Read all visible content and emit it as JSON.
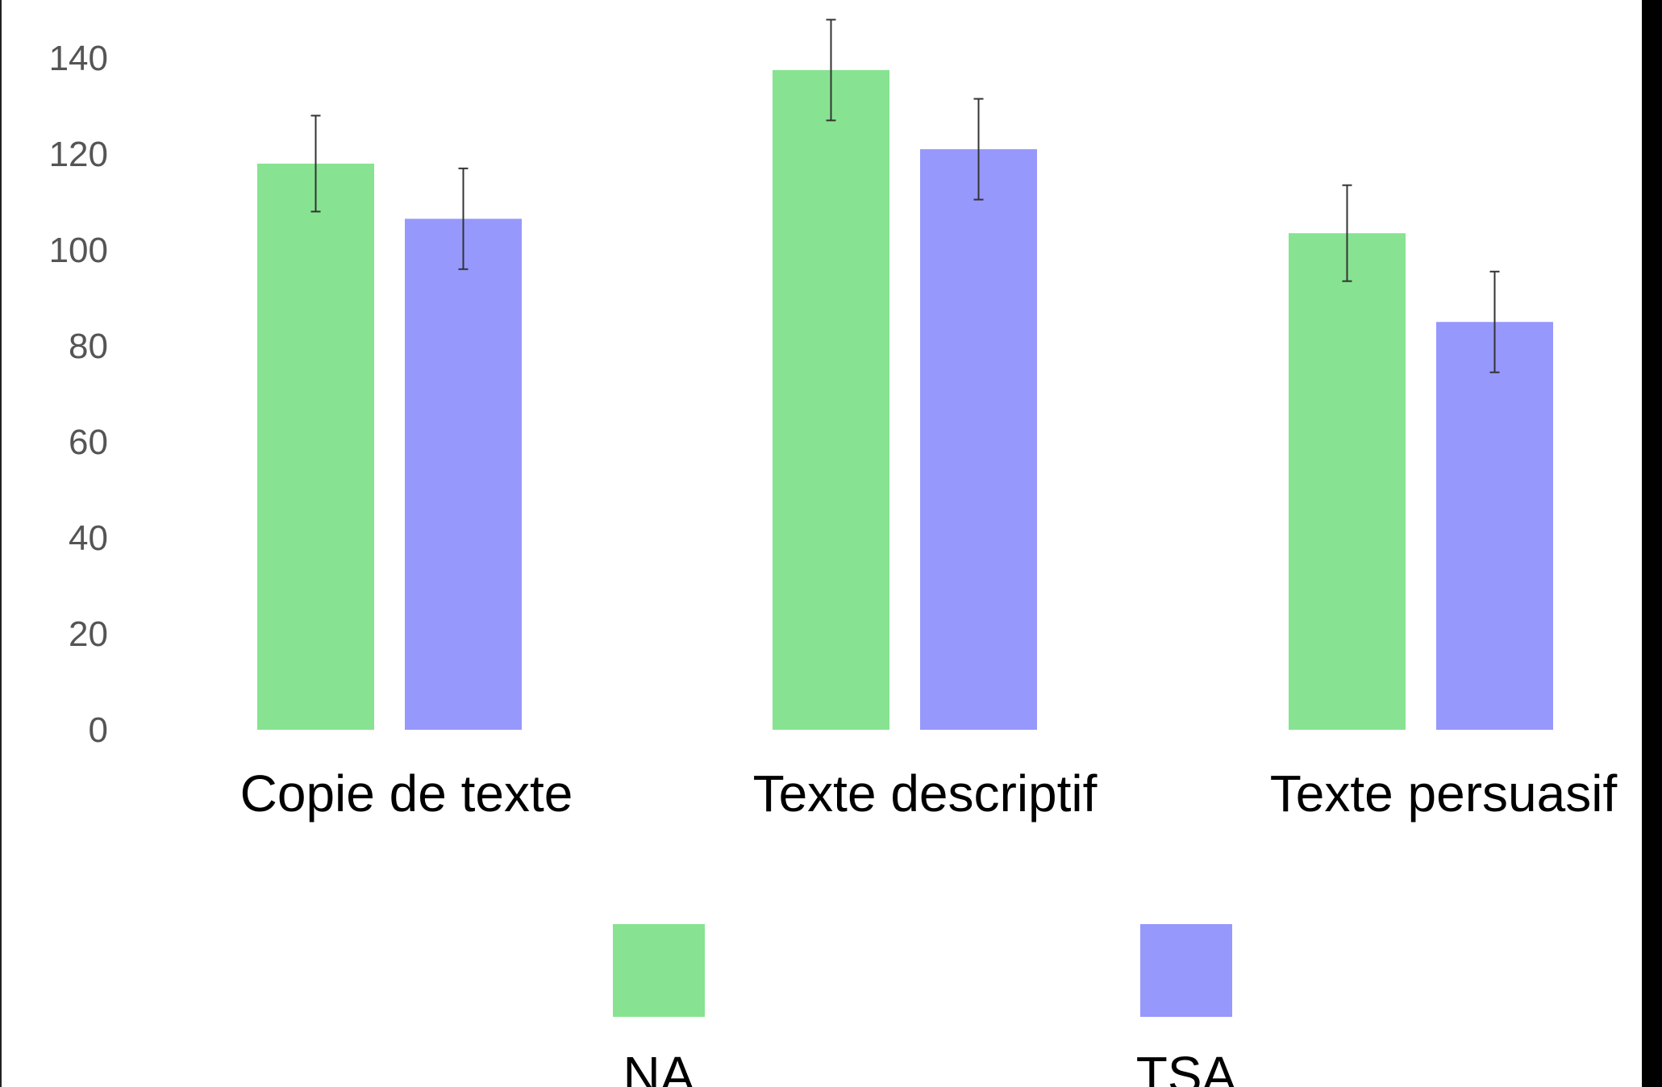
{
  "chart_data": {
    "type": "bar",
    "title": "",
    "xlabel": "",
    "ylabel": "",
    "categories": [
      "Copie de texte",
      "Texte descriptif",
      "Texte persuasif"
    ],
    "series": [
      {
        "name": "NA",
        "color": "#87e391",
        "values": [
          118,
          137.5,
          103.5
        ],
        "error": [
          10,
          10.5,
          10
        ]
      },
      {
        "name": "TSA",
        "color": "#9698fc",
        "values": [
          106.5,
          121,
          85
        ],
        "error": [
          10.5,
          10.5,
          10.5
        ]
      }
    ],
    "yticks": [
      "0",
      "20",
      "40",
      "60",
      "80",
      "100",
      "120",
      "140"
    ],
    "ylim": [
      0,
      140
    ],
    "grid": false,
    "legend": "bottom"
  }
}
